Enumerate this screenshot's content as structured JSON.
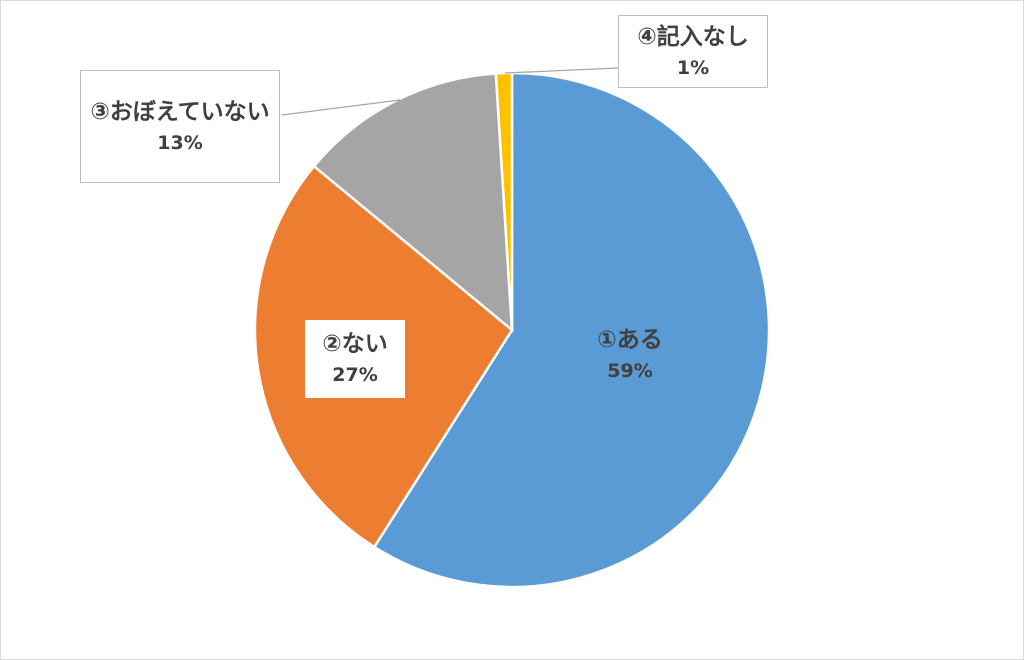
{
  "chart_data": {
    "type": "pie",
    "categories": [
      "①ある",
      "②ない",
      "③おぼえていない",
      "④記入なし"
    ],
    "values": [
      59,
      27,
      13,
      1
    ],
    "value_labels": [
      "59%",
      "27%",
      "13%",
      "1%"
    ],
    "colors": [
      "#5b9bd5",
      "#ed7d31",
      "#a5a5a5",
      "#ffc000"
    ]
  }
}
